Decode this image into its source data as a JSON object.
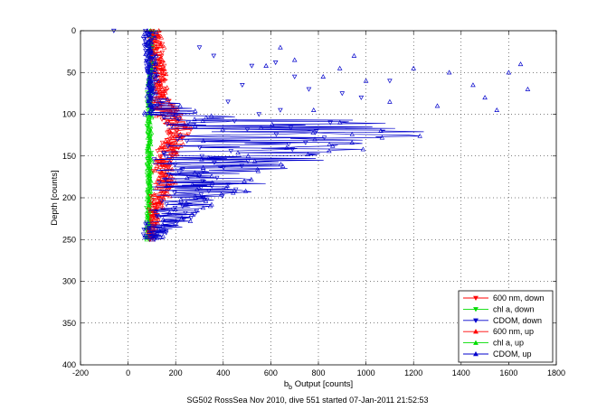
{
  "caption": "SG502 RossSea Nov 2010, dive 551 started 07-Jan-2011 21:52:53",
  "chart_data": {
    "type": "line",
    "title": "",
    "xlabel": "b_b Output [counts]",
    "xlabel_main": "b",
    "xlabel_sub": "b",
    "xlabel_rest": " Output [counts]",
    "ylabel": "Depth [counts]",
    "xlim": [
      -200,
      1800
    ],
    "ylim": [
      0,
      400
    ],
    "y_reversed": true,
    "grid": true,
    "x_ticks": [
      -200,
      0,
      200,
      400,
      600,
      800,
      1000,
      1200,
      1400,
      1600,
      1800
    ],
    "y_ticks": [
      0,
      50,
      100,
      150,
      200,
      250,
      300,
      350,
      400
    ],
    "legend_position": "bottom-right",
    "series": [
      {
        "name": "600 nm, down",
        "color": "#ff0000",
        "marker": "down",
        "depth": [
          0,
          10,
          20,
          30,
          40,
          50,
          60,
          70,
          80,
          90,
          100,
          110,
          120,
          130,
          140,
          150,
          160,
          170,
          180,
          190,
          200,
          210,
          220,
          230,
          240,
          250
        ],
        "center": [
          110,
          115,
          118,
          120,
          125,
          130,
          130,
          130,
          135,
          140,
          160,
          190,
          210,
          200,
          170,
          150,
          140,
          140,
          150,
          140,
          130,
          120,
          110,
          105,
          100,
          100
        ],
        "spread": [
          25,
          30,
          35,
          35,
          35,
          30,
          30,
          30,
          40,
          50,
          60,
          60,
          60,
          55,
          50,
          45,
          40,
          40,
          45,
          40,
          35,
          30,
          25,
          20,
          15,
          15
        ]
      },
      {
        "name": "chl a, down",
        "color": "#00dd00",
        "marker": "down",
        "depth": [
          0,
          25,
          50,
          75,
          100,
          125,
          150,
          175,
          200,
          225,
          250
        ],
        "center": [
          95,
          95,
          92,
          90,
          90,
          88,
          88,
          88,
          88,
          85,
          85
        ],
        "spread": [
          12,
          10,
          10,
          10,
          10,
          10,
          10,
          10,
          10,
          10,
          10
        ]
      },
      {
        "name": "CDOM, down",
        "color": "#0000cc",
        "marker": "down",
        "depth": [
          0,
          50,
          80,
          100,
          110,
          120,
          130,
          140,
          150,
          160,
          170,
          180,
          190,
          200,
          210,
          220,
          230,
          240,
          250
        ],
        "center": [
          80,
          90,
          90,
          100,
          300,
          500,
          500,
          450,
          350,
          300,
          300,
          300,
          300,
          250,
          200,
          200,
          150,
          120,
          100
        ],
        "spread": [
          20,
          10,
          10,
          20,
          250,
          350,
          350,
          300,
          250,
          200,
          200,
          200,
          200,
          150,
          120,
          120,
          80,
          60,
          40
        ]
      },
      {
        "name": "600 nm, up",
        "color": "#ff0000",
        "marker": "up",
        "depth": [
          0,
          10,
          20,
          30,
          40,
          50,
          60,
          70,
          80,
          90,
          100,
          110,
          120,
          130,
          140,
          150,
          160,
          170,
          180,
          190,
          200,
          210,
          220,
          230,
          240,
          250
        ],
        "center": [
          120,
          120,
          125,
          128,
          130,
          135,
          140,
          140,
          140,
          150,
          170,
          200,
          220,
          210,
          180,
          160,
          150,
          150,
          160,
          150,
          140,
          125,
          115,
          110,
          105,
          100
        ],
        "spread": [
          25,
          30,
          35,
          35,
          35,
          30,
          30,
          30,
          40,
          50,
          60,
          60,
          60,
          55,
          50,
          45,
          40,
          40,
          45,
          40,
          35,
          30,
          25,
          20,
          15,
          15
        ]
      },
      {
        "name": "chl a, up",
        "color": "#00dd00",
        "marker": "up",
        "depth": [
          0,
          25,
          50,
          75,
          100,
          125,
          150,
          175,
          200,
          225,
          250
        ],
        "center": [
          100,
          98,
          95,
          92,
          92,
          90,
          90,
          90,
          90,
          88,
          88
        ],
        "spread": [
          12,
          10,
          10,
          10,
          10,
          10,
          10,
          10,
          10,
          10,
          10
        ]
      },
      {
        "name": "CDOM, up",
        "color": "#0000cc",
        "marker": "up",
        "depth": [
          0,
          50,
          80,
          100,
          110,
          120,
          130,
          140,
          150,
          160,
          170,
          180,
          190,
          200,
          210,
          220,
          230,
          240,
          250
        ],
        "center": [
          90,
          100,
          110,
          200,
          700,
          900,
          800,
          700,
          550,
          450,
          400,
          350,
          350,
          300,
          250,
          220,
          180,
          140,
          110
        ],
        "spread": [
          30,
          20,
          40,
          150,
          500,
          500,
          500,
          400,
          350,
          300,
          250,
          250,
          200,
          150,
          120,
          120,
          80,
          60,
          40
        ]
      }
    ],
    "scatter_points": [
      {
        "series": "CDOM, down",
        "marker": "down",
        "color": "#0000cc",
        "points": [
          [
            -60,
            0
          ],
          [
            360,
            30
          ],
          [
            520,
            42
          ],
          [
            700,
            55
          ],
          [
            900,
            75
          ],
          [
            1100,
            60
          ],
          [
            420,
            85
          ],
          [
            640,
            95
          ],
          [
            980,
            80
          ],
          [
            760,
            70
          ],
          [
            550,
            100
          ],
          [
            850,
            110
          ],
          [
            300,
            20
          ],
          [
            480,
            65
          ],
          [
            620,
            38
          ]
        ]
      },
      {
        "series": "CDOM, up",
        "marker": "up",
        "color": "#0000cc",
        "points": [
          [
            1650,
            40
          ],
          [
            1680,
            70
          ],
          [
            1600,
            50
          ],
          [
            1500,
            80
          ],
          [
            1300,
            90
          ],
          [
            1200,
            45
          ],
          [
            1000,
            60
          ],
          [
            950,
            30
          ],
          [
            820,
            55
          ],
          [
            700,
            35
          ],
          [
            580,
            42
          ],
          [
            1450,
            65
          ],
          [
            1100,
            85
          ],
          [
            780,
            95
          ],
          [
            640,
            20
          ],
          [
            1550,
            95
          ],
          [
            1350,
            50
          ],
          [
            890,
            45
          ]
        ]
      }
    ]
  }
}
